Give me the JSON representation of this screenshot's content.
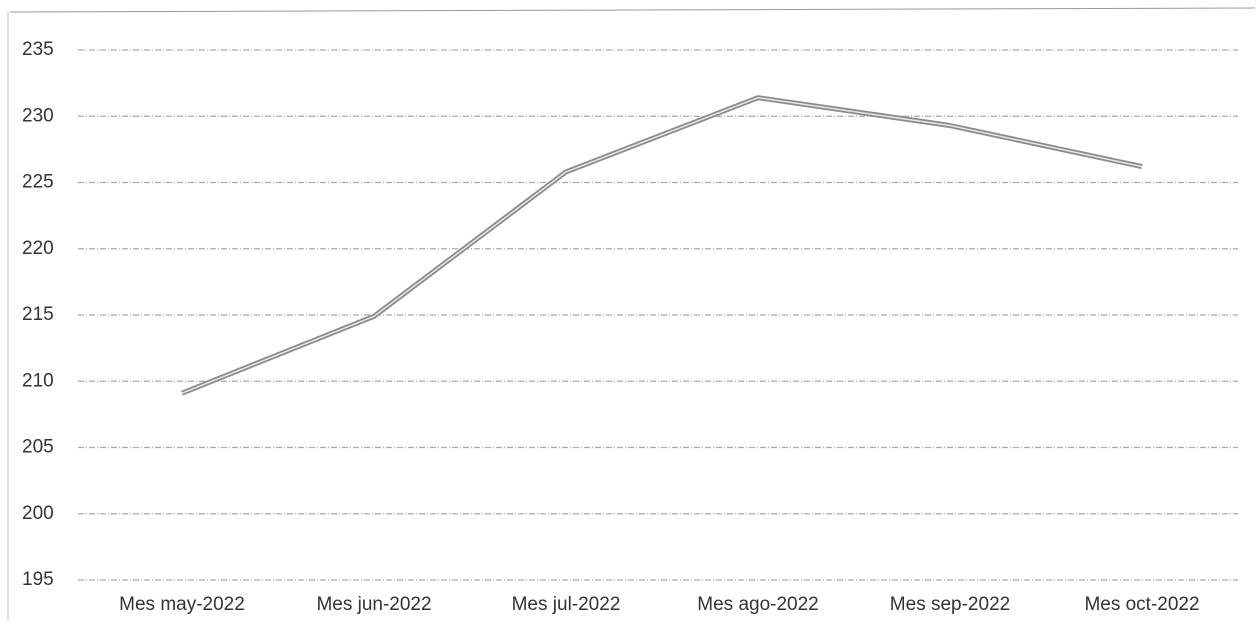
{
  "chart_data": {
    "type": "line",
    "categories": [
      "Mes may-2022",
      "Mes jun-2022",
      "Mes jul-2022",
      "Mes ago-2022",
      "Mes sep-2022",
      "Mes oct-2022"
    ],
    "series": [
      {
        "color": "#8a8a8a",
        "values": [
          209.1,
          214.9,
          225.8,
          231.4,
          229.3,
          226.2
        ]
      }
    ],
    "ylim": [
      195,
      235
    ],
    "yticks": [
      195,
      200,
      205,
      210,
      215,
      220,
      225,
      230,
      235
    ],
    "grid": true
  }
}
